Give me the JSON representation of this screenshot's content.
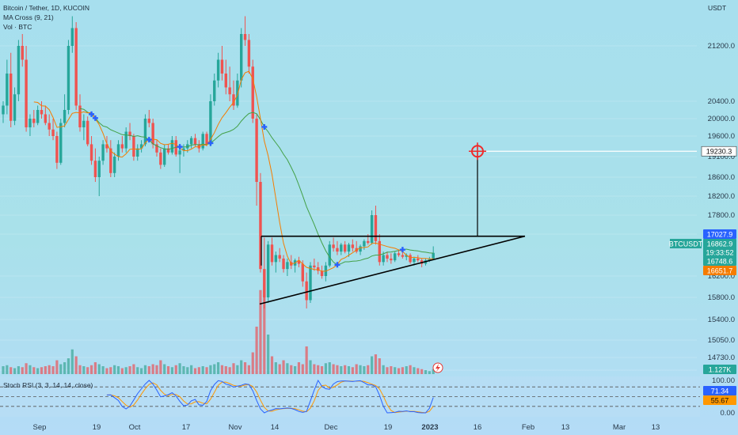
{
  "header": {
    "symbol_line": "Bitcoin / Tether, 1D, KUCOIN",
    "indicator_ma": "MA Cross (9, 21)",
    "indicator_vol": "Vol · BTC",
    "currency": "USDT"
  },
  "stoch_label": "Stoch RSI (3, 3, 14, 14, close)",
  "badges": {
    "target": "19230.3",
    "symbol": "BTCUSDT",
    "high": "17027.9",
    "last": "16862.9",
    "countdown": "19:33:52",
    "ma_fast": "16748.6",
    "ma_slow": "16651.7",
    "volume": "1.127K",
    "stoch_k": "71.34",
    "stoch_d": "55.67"
  },
  "colors": {
    "up": "#26a69a",
    "down": "#ef5350",
    "ma_fast": "#f57c00",
    "ma_slow": "#43a047",
    "stoch_k": "#2962ff",
    "stoch_d": "#ff9800",
    "cross_marker": "#2962ff",
    "target": "#ef2b2b"
  },
  "chart_data": {
    "type": "candlestick",
    "price_axis": {
      "ticks": [
        "21200.0",
        "20400.0",
        "20000.0",
        "19600.0",
        "19100.0",
        "18600.0",
        "18200.0",
        "17800.0",
        "17400.0",
        "16200.0",
        "15800.0",
        "15400.0",
        "15050.0",
        "14730.0",
        "14450.0"
      ],
      "range": [
        14450,
        21600
      ]
    },
    "time_axis": {
      "ticks": [
        "Sep",
        "19",
        "Oct",
        "17",
        "Nov",
        "14",
        "Dec",
        "19",
        "2023",
        "16",
        "Feb",
        "13",
        "Mar",
        "13"
      ]
    },
    "stoch_axis": {
      "ticks": [
        "100.00",
        "0.00"
      ],
      "range": [
        0,
        100
      ],
      "bands": [
        80,
        50,
        20
      ]
    },
    "annotations": {
      "triangle_resistance": 17340,
      "triangle_support_start": 15680,
      "triangle_apex": 17340,
      "target_price": 19230
    },
    "candles": [
      [
        20100,
        20400,
        19900,
        20300
      ],
      [
        20300,
        21000,
        20100,
        20800
      ],
      [
        20800,
        21100,
        19800,
        19950
      ],
      [
        19950,
        20600,
        19850,
        20500
      ],
      [
        20500,
        21300,
        20400,
        21200
      ],
      [
        21200,
        21400,
        20900,
        21000
      ],
      [
        21000,
        21200,
        19700,
        19800
      ],
      [
        19800,
        20100,
        19600,
        20000
      ],
      [
        20000,
        20200,
        19800,
        19900
      ],
      [
        19900,
        20300,
        19850,
        20200
      ],
      [
        20200,
        20400,
        20000,
        20100
      ],
      [
        20100,
        20300,
        19850,
        19900
      ],
      [
        19900,
        20100,
        19600,
        19750
      ],
      [
        19750,
        20000,
        19500,
        19600
      ],
      [
        19600,
        19700,
        18800,
        18950
      ],
      [
        18950,
        20000,
        18900,
        19900
      ],
      [
        19900,
        20500,
        19800,
        20200
      ],
      [
        20200,
        21300,
        20100,
        21200
      ],
      [
        21200,
        21700,
        21100,
        21500
      ],
      [
        21500,
        21600,
        20200,
        20300
      ],
      [
        20300,
        20500,
        19700,
        19800
      ],
      [
        19800,
        20100,
        19500,
        19950
      ],
      [
        19950,
        20050,
        19350,
        19400
      ],
      [
        19400,
        19600,
        18900,
        19000
      ],
      [
        19000,
        19300,
        18500,
        18600
      ],
      [
        18600,
        19100,
        18200,
        19000
      ],
      [
        19000,
        19500,
        18900,
        19400
      ],
      [
        19400,
        19600,
        19200,
        19300
      ],
      [
        19300,
        19500,
        18600,
        18700
      ],
      [
        18700,
        19200,
        18600,
        19100
      ],
      [
        19100,
        19500,
        19000,
        19400
      ],
      [
        19400,
        19600,
        19200,
        19300
      ],
      [
        19300,
        19800,
        19200,
        19700
      ],
      [
        19700,
        19900,
        19500,
        19600
      ],
      [
        19600,
        19650,
        19000,
        19100
      ],
      [
        19100,
        19400,
        19000,
        19300
      ],
      [
        19300,
        19500,
        19200,
        19400
      ],
      [
        19400,
        20100,
        19350,
        20000
      ],
      [
        20000,
        20200,
        19800,
        19900
      ],
      [
        19900,
        20000,
        19300,
        19400
      ],
      [
        19400,
        19500,
        19100,
        19200
      ],
      [
        19200,
        19300,
        18800,
        18900
      ],
      [
        18900,
        19400,
        18850,
        19300
      ],
      [
        19300,
        19400,
        19150,
        19200
      ],
      [
        19200,
        19600,
        19150,
        19500
      ],
      [
        19500,
        19600,
        19100,
        19150
      ],
      [
        19150,
        19350,
        18700,
        19250
      ],
      [
        19250,
        19400,
        19100,
        19300
      ],
      [
        19300,
        19500,
        19200,
        19400
      ],
      [
        19400,
        19600,
        19300,
        19550
      ],
      [
        19550,
        19650,
        19350,
        19400
      ],
      [
        19400,
        19500,
        19200,
        19300
      ],
      [
        19300,
        19700,
        19250,
        19650
      ],
      [
        19650,
        19700,
        19350,
        19400
      ],
      [
        19400,
        20500,
        19350,
        20400
      ],
      [
        20400,
        20800,
        20300,
        20700
      ],
      [
        20700,
        21100,
        20600,
        21000
      ],
      [
        21000,
        21200,
        20700,
        20800
      ],
      [
        20800,
        21000,
        20500,
        20600
      ],
      [
        20600,
        20900,
        20400,
        20500
      ],
      [
        20500,
        20700,
        20200,
        20300
      ],
      [
        20300,
        20800,
        20250,
        20700
      ],
      [
        20700,
        21500,
        20600,
        21400
      ],
      [
        21400,
        21700,
        21200,
        21300
      ],
      [
        21300,
        21400,
        20800,
        20900
      ],
      [
        20900,
        21000,
        19900,
        20000
      ],
      [
        20000,
        20100,
        18000,
        18500
      ],
      [
        18500,
        18700,
        16300,
        16400
      ],
      [
        16400,
        17300,
        15600,
        15800
      ],
      [
        15800,
        17200,
        15700,
        17100
      ],
      [
        17100,
        17300,
        16500,
        16600
      ],
      [
        16600,
        16900,
        16300,
        16800
      ],
      [
        16800,
        17000,
        16600,
        16700
      ],
      [
        16700,
        16800,
        16300,
        16400
      ],
      [
        16400,
        16700,
        16200,
        16600
      ],
      [
        16600,
        16800,
        16400,
        16500
      ],
      [
        16500,
        16700,
        16300,
        16650
      ],
      [
        16650,
        16750,
        16450,
        16550
      ],
      [
        16550,
        16650,
        16000,
        16100
      ],
      [
        16100,
        16300,
        15600,
        15750
      ],
      [
        15750,
        16600,
        15700,
        16500
      ],
      [
        16500,
        16700,
        16350,
        16450
      ],
      [
        16450,
        16600,
        16250,
        16350
      ],
      [
        16350,
        16500,
        16150,
        16200
      ],
      [
        16200,
        16600,
        16100,
        16500
      ],
      [
        16500,
        17200,
        16450,
        17100
      ],
      [
        17100,
        17300,
        16900,
        17000
      ],
      [
        17000,
        17200,
        16800,
        16900
      ],
      [
        16900,
        17150,
        16800,
        17100
      ],
      [
        17100,
        17200,
        16850,
        16900
      ],
      [
        16900,
        17150,
        16750,
        17100
      ],
      [
        17100,
        17250,
        16900,
        17000
      ],
      [
        17000,
        17200,
        16850,
        16900
      ],
      [
        16900,
        17100,
        16800,
        17050
      ],
      [
        17050,
        17250,
        16950,
        17200
      ],
      [
        17200,
        17400,
        17100,
        17150
      ],
      [
        17150,
        17900,
        17100,
        17800
      ],
      [
        17800,
        18000,
        17100,
        17200
      ],
      [
        17200,
        17400,
        16500,
        16600
      ],
      [
        16600,
        16900,
        16500,
        16800
      ],
      [
        16800,
        16900,
        16600,
        16700
      ],
      [
        16700,
        16850,
        16550,
        16650
      ],
      [
        16650,
        16900,
        16600,
        16850
      ],
      [
        16850,
        16950,
        16750,
        16800
      ],
      [
        16800,
        16900,
        16700,
        16750
      ],
      [
        16750,
        16850,
        16650,
        16800
      ],
      [
        16800,
        16850,
        16550,
        16600
      ],
      [
        16600,
        16750,
        16500,
        16700
      ],
      [
        16700,
        16800,
        16600,
        16650
      ],
      [
        16650,
        16700,
        16450,
        16550
      ],
      [
        16550,
        16700,
        16500,
        16650
      ],
      [
        16650,
        16750,
        16600,
        16700
      ],
      [
        16700,
        17050,
        16650,
        16863
      ]
    ],
    "volumes": [
      8,
      9,
      7,
      6,
      8,
      7,
      11,
      9,
      7,
      6,
      7,
      8,
      9,
      8,
      14,
      10,
      12,
      16,
      25,
      18,
      9,
      8,
      7,
      9,
      12,
      10,
      8,
      6,
      7,
      9,
      8,
      6,
      7,
      8,
      10,
      7,
      6,
      9,
      8,
      10,
      9,
      14,
      10,
      8,
      7,
      9,
      11,
      8,
      7,
      9,
      6,
      7,
      8,
      7,
      9,
      10,
      12,
      9,
      8,
      7,
      11,
      9,
      14,
      12,
      9,
      22,
      48,
      85,
      92,
      40,
      18,
      12,
      10,
      14,
      11,
      9,
      8,
      12,
      10,
      28,
      14,
      10,
      9,
      8,
      11,
      12,
      10,
      9,
      8,
      9,
      8,
      7,
      10,
      9,
      8,
      9,
      18,
      20,
      16,
      9,
      7,
      8,
      7,
      6,
      7,
      8,
      9,
      7,
      6,
      5,
      4,
      3,
      5
    ]
  }
}
